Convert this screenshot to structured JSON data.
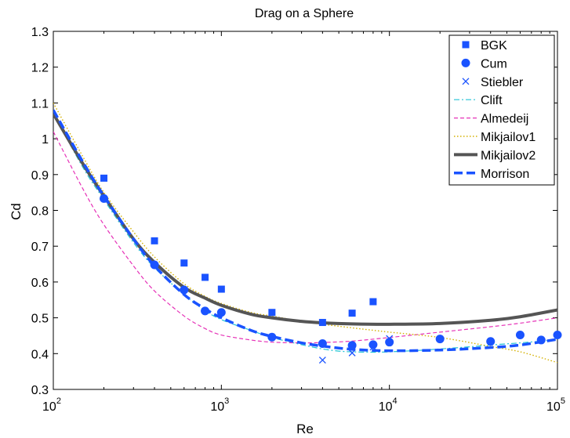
{
  "chart_data": {
    "type": "line",
    "title": "Drag on a Sphere",
    "xlabel": "Re",
    "ylabel": "Cd",
    "xscale": "log",
    "xlim": [
      100,
      100000
    ],
    "ylim": [
      0.3,
      1.3
    ],
    "grid": false,
    "legend_position": "top-right",
    "x_ticks": [
      {
        "value": 100,
        "base": "10",
        "exp": "2"
      },
      {
        "value": 1000,
        "base": "10",
        "exp": "3"
      },
      {
        "value": 10000,
        "base": "10",
        "exp": "4"
      },
      {
        "value": 100000,
        "base": "10",
        "exp": "5"
      }
    ],
    "y_ticks": [
      {
        "value": 0.3,
        "label": "0.3"
      },
      {
        "value": 0.4,
        "label": "0.4"
      },
      {
        "value": 0.5,
        "label": "0.5"
      },
      {
        "value": 0.6,
        "label": "0.6"
      },
      {
        "value": 0.7,
        "label": "0.7"
      },
      {
        "value": 0.8,
        "label": "0.8"
      },
      {
        "value": 0.9,
        "label": "0.9"
      },
      {
        "value": 1.0,
        "label": "1"
      },
      {
        "value": 1.1,
        "label": "1.1"
      },
      {
        "value": 1.2,
        "label": "1.2"
      },
      {
        "value": 1.3,
        "label": "1.3"
      }
    ],
    "series": [
      {
        "name": "BGK",
        "kind": "scatter",
        "marker": "square",
        "color": "#1a53ff",
        "x": [
          200,
          400,
          600,
          800,
          1000,
          2000,
          4000,
          6000,
          8000
        ],
        "y": [
          0.89,
          0.715,
          0.653,
          0.613,
          0.58,
          0.515,
          0.487,
          0.513,
          0.545
        ]
      },
      {
        "name": "Cum",
        "kind": "scatter",
        "marker": "circle",
        "color": "#1a53ff",
        "x": [
          200,
          400,
          600,
          800,
          1000,
          2000,
          4000,
          6000,
          8000,
          10000,
          20000,
          40000,
          60000,
          80000,
          100000
        ],
        "y": [
          0.833,
          0.648,
          0.578,
          0.519,
          0.515,
          0.446,
          0.428,
          0.423,
          0.425,
          0.432,
          0.441,
          0.434,
          0.452,
          0.438,
          0.452
        ]
      },
      {
        "name": "Stiebler",
        "kind": "scatter",
        "marker": "x",
        "color": "#1a53ff",
        "x": [
          4000,
          6000,
          8000,
          10000
        ],
        "y": [
          0.382,
          0.402,
          0.418,
          0.442
        ]
      },
      {
        "name": "Clift",
        "kind": "line",
        "style": "dashdot",
        "color": "#22c3d6",
        "x": [
          100,
          150,
          200,
          300,
          400,
          600,
          800,
          1000,
          1500,
          2000,
          3000,
          4000,
          5000,
          6000,
          8000,
          10000,
          15000,
          20000,
          30000,
          40000,
          60000,
          80000,
          100000
        ],
        "y": [
          1.07,
          0.92,
          0.83,
          0.71,
          0.64,
          0.565,
          0.52,
          0.495,
          0.465,
          0.445,
          0.425,
          0.413,
          0.407,
          0.405,
          0.404,
          0.405,
          0.409,
          0.413,
          0.419,
          0.424,
          0.43,
          0.435,
          0.44
        ]
      },
      {
        "name": "Almedeij",
        "kind": "line",
        "style": "dashed",
        "color": "#e633b8",
        "x": [
          100,
          150,
          200,
          300,
          400,
          600,
          800,
          1000,
          1500,
          2000,
          3000,
          4000,
          6000,
          10000,
          20000,
          40000,
          60000,
          100000
        ],
        "y": [
          1.02,
          0.86,
          0.76,
          0.645,
          0.575,
          0.505,
          0.47,
          0.452,
          0.438,
          0.432,
          0.43,
          0.431,
          0.435,
          0.445,
          0.46,
          0.475,
          0.485,
          0.5
        ]
      },
      {
        "name": "Mikjailov1",
        "kind": "line",
        "style": "dotted",
        "color": "#d4b000",
        "x": [
          100,
          150,
          200,
          300,
          400,
          600,
          800,
          1000,
          1500,
          2000,
          3000,
          4000,
          6000,
          10000,
          20000,
          40000,
          60000,
          100000
        ],
        "y": [
          1.1,
          0.95,
          0.85,
          0.74,
          0.67,
          0.595,
          0.56,
          0.54,
          0.515,
          0.505,
          0.49,
          0.482,
          0.472,
          0.46,
          0.445,
          0.42,
          0.405,
          0.375
        ]
      },
      {
        "name": "Mikjailov2",
        "kind": "line",
        "style": "solid-thick",
        "color": "#555555",
        "x": [
          100,
          150,
          200,
          300,
          400,
          600,
          800,
          1000,
          1500,
          2000,
          3000,
          4000,
          6000,
          10000,
          20000,
          40000,
          60000,
          100000
        ],
        "y": [
          1.07,
          0.93,
          0.84,
          0.72,
          0.655,
          0.585,
          0.555,
          0.535,
          0.51,
          0.5,
          0.49,
          0.486,
          0.483,
          0.482,
          0.484,
          0.493,
          0.503,
          0.522
        ]
      },
      {
        "name": "Morrison",
        "kind": "line",
        "style": "dashed-thick",
        "color": "#1a53ff",
        "x": [
          100,
          150,
          200,
          300,
          400,
          600,
          800,
          1000,
          1500,
          2000,
          3000,
          4000,
          6000,
          10000,
          20000,
          40000,
          60000,
          100000
        ],
        "y": [
          1.08,
          0.935,
          0.84,
          0.72,
          0.645,
          0.565,
          0.525,
          0.5,
          0.465,
          0.448,
          0.43,
          0.421,
          0.412,
          0.408,
          0.41,
          0.417,
          0.424,
          0.44
        ]
      }
    ]
  }
}
